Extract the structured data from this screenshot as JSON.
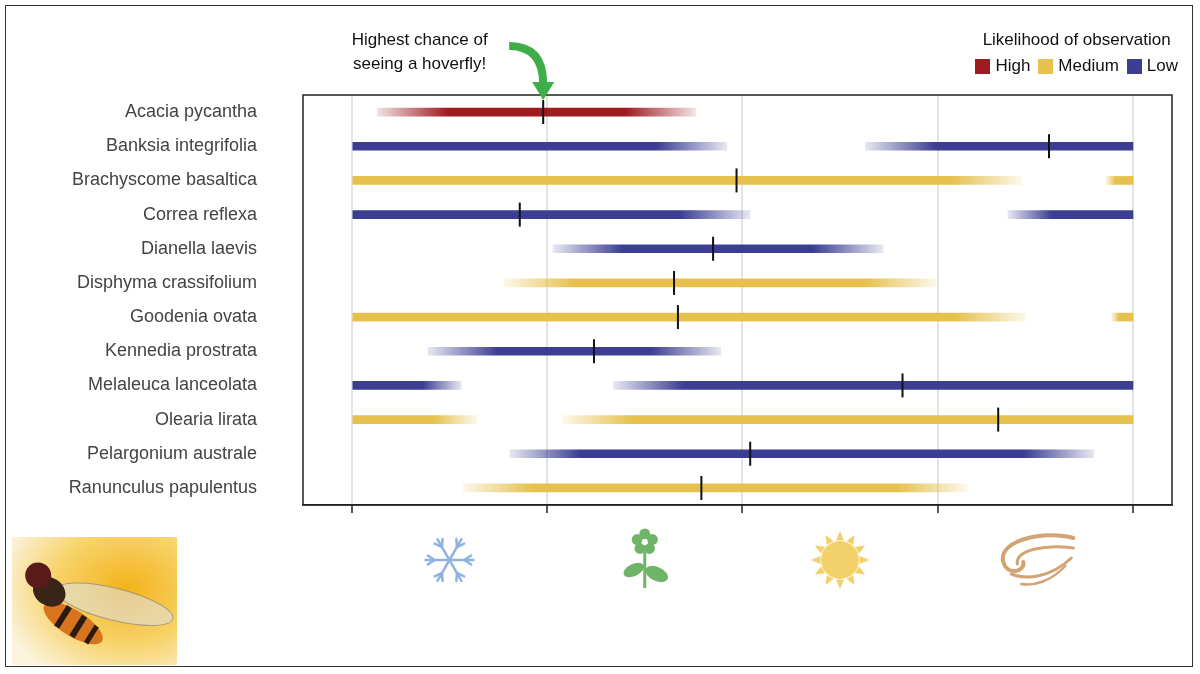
{
  "chart_data": {
    "type": "bar",
    "orientation": "horizontal",
    "annotation": {
      "text": "Highest chance of seeing a hoverfly!",
      "x": 0.98
    },
    "legend": "top-right",
    "legend_title": "Likelihood of observation",
    "levels": [
      {
        "name": "High",
        "color": "#9e1c1f"
      },
      {
        "name": "Medium",
        "color": "#e6c14e"
      },
      {
        "name": "Low",
        "color": "#3b3e93"
      }
    ],
    "categories": [
      "Acacia pycantha",
      "Banksia integrifolia",
      "Brachyscome basaltica",
      "Correa reflexa",
      "Dianella laevis",
      "Disphyma crassifolium",
      "Goodenia ovata",
      "Kennedia prostrata",
      "Melaleuca lanceolata",
      "Olearia lirata",
      "Pelargonium australe",
      "Ranunculus papulentus"
    ],
    "level": [
      "High",
      "Low",
      "Medium",
      "Low",
      "Low",
      "Medium",
      "Medium",
      "Low",
      "Low",
      "Medium",
      "Low",
      "Medium"
    ],
    "ranges": [
      [
        [
          0.13,
          1.76
        ]
      ],
      [
        [
          0,
          1.92
        ],
        [
          2.63,
          4
        ]
      ],
      [
        [
          0,
          3.43
        ],
        [
          3.86,
          4
        ]
      ],
      [
        [
          0,
          2.04
        ],
        [
          3.36,
          4
        ]
      ],
      [
        [
          1.03,
          2.72
        ]
      ],
      [
        [
          0.78,
          2.99
        ]
      ],
      [
        [
          0,
          3.45
        ],
        [
          3.89,
          4
        ]
      ],
      [
        [
          0.39,
          1.89
        ]
      ],
      [
        [
          0,
          0.56
        ],
        [
          1.34,
          4
        ]
      ],
      [
        [
          0,
          0.64
        ],
        [
          1.08,
          4
        ]
      ],
      [
        [
          0.81,
          3.8
        ]
      ],
      [
        [
          0.57,
          3.15
        ]
      ]
    ],
    "medians": [
      0.98,
      3.57,
      1.97,
      0.86,
      1.85,
      1.65,
      1.67,
      1.24,
      2.82,
      3.31,
      2.04,
      1.79
    ],
    "xlim": [
      -0.25,
      4.2
    ],
    "xticks": [
      0,
      1,
      2,
      3,
      4
    ],
    "grid": true,
    "tick_labels": "y"
  }
}
